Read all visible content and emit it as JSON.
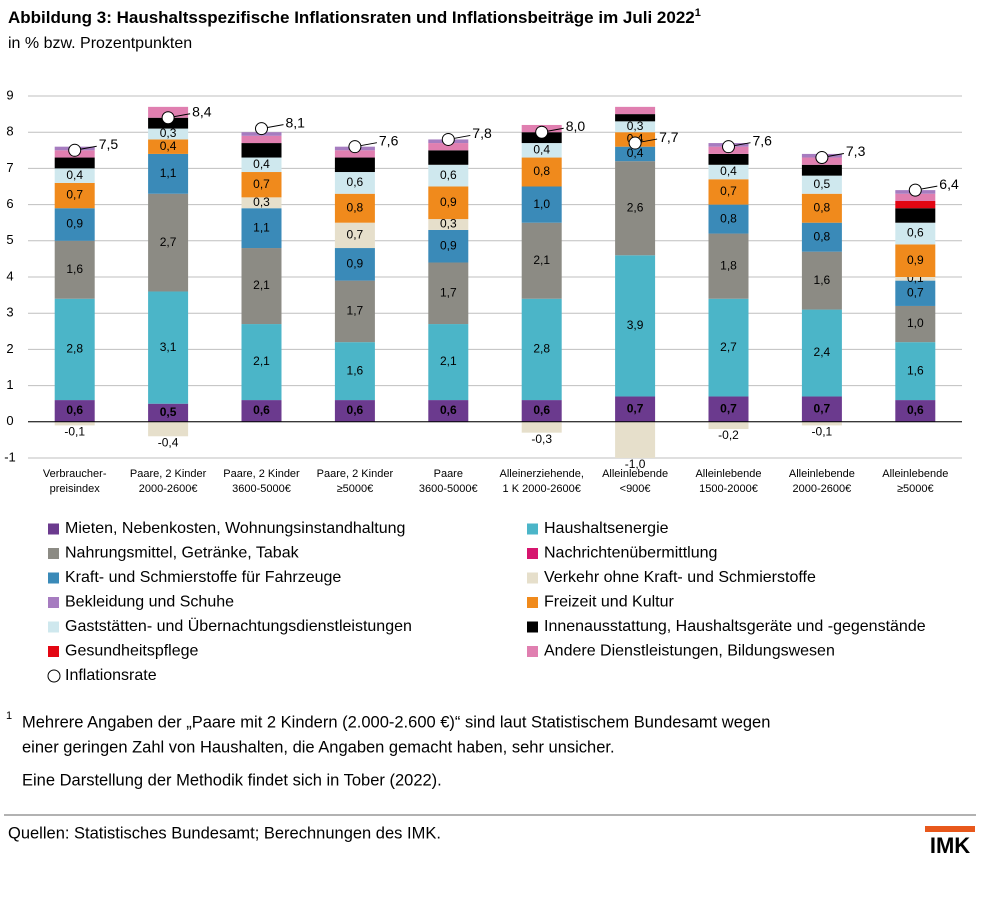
{
  "chart_data": {
    "type": "stacked_bar",
    "title": "Abbildung 3: Haushaltsspezifische Inflationsraten und Inflationsbeiträge im Juli 2022",
    "title_note": "1",
    "subtitle": "in % bzw. Prozentpunkten",
    "categories": [
      [
        "Verbraucher-",
        "preisindex"
      ],
      [
        "Paare, 2  Kinder",
        "2000-2600€"
      ],
      [
        "Paare, 2  Kinder",
        "3600-5000€"
      ],
      [
        "Paare, 2  Kinder",
        "≥5000€"
      ],
      [
        "Paare",
        "3600-5000€"
      ],
      [
        "Alleinerziehende,",
        "1 K 2000-2600€"
      ],
      [
        "Alleinlebende",
        "<900€"
      ],
      [
        "Alleinlebende",
        "1500-2000€"
      ],
      [
        "Alleinlebende",
        "2000-2600€"
      ],
      [
        "Alleinlebende",
        "≥5000€"
      ]
    ],
    "ylim": [
      -1,
      9
    ],
    "yticks": [
      -1,
      0,
      1,
      2,
      3,
      4,
      5,
      6,
      7,
      8,
      9
    ],
    "grid": true,
    "series": [
      {
        "name": "Mieten, Nebenkosten, Wohnungsinstandhaltung",
        "color": "#6b3a8e",
        "values": [
          0.6,
          0.5,
          0.6,
          0.6,
          0.6,
          0.6,
          0.7,
          0.7,
          0.7,
          0.6
        ],
        "value_labels": [
          "0,6",
          "0,5",
          "0,6",
          "0,6",
          "0,6",
          "0,6",
          "0,7",
          "0,7",
          "0,7",
          "0,6"
        ]
      },
      {
        "name": "Haushaltsenergie",
        "color": "#4bb5c8",
        "values": [
          2.8,
          3.1,
          2.1,
          1.6,
          2.1,
          2.8,
          3.9,
          2.7,
          2.4,
          1.6
        ],
        "value_labels": [
          "2,8",
          "3,1",
          "2,1",
          "1,6",
          "2,1",
          "2,8",
          "3,9",
          "2,7",
          "2,4",
          "1,6"
        ]
      },
      {
        "name": "Nahrungsmittel, Getränke, Tabak",
        "color": "#8c8b84",
        "values": [
          1.6,
          2.7,
          2.1,
          1.7,
          1.7,
          2.1,
          2.6,
          1.8,
          1.6,
          1.0
        ],
        "value_labels": [
          "1,6",
          "2,7",
          "2,1",
          "1,7",
          "1,7",
          "2,1",
          "2,6",
          "1,8",
          "1,6",
          "1,0"
        ]
      },
      {
        "name": "Nachrichtenübermittlung",
        "color": "#d6156e",
        "values": [
          0,
          0,
          0,
          0,
          0,
          0,
          0,
          0,
          0,
          0
        ]
      },
      {
        "name": "Kraft- und Schmierstoffe für Fahrzeuge",
        "color": "#3a8ab8",
        "values": [
          0.9,
          1.1,
          1.1,
          0.9,
          0.9,
          1.0,
          0.4,
          0.8,
          0.8,
          0.7
        ],
        "value_labels": [
          "0,9",
          "1,1",
          "1,1",
          "0,9",
          "0,9",
          "1,0",
          "0,4",
          "0,8",
          "0,8",
          "0,7"
        ]
      },
      {
        "name": "Verkehr ohne Kraft- und Schmierstoffe",
        "color": "#e6dfcb",
        "values": [
          -0.1,
          -0.4,
          0.3,
          0.7,
          0.3,
          -0.3,
          -1.0,
          -0.2,
          -0.1,
          0.1
        ],
        "value_labels": [
          "-0,1",
          "-0,4",
          "0,3",
          "0,7",
          "0,3",
          "-0,3",
          "-1,0",
          "-0,2",
          "-0,1",
          "0,1"
        ]
      },
      {
        "name": "Bekleidung und Schuhe",
        "color": "#a67cc0",
        "values": [
          0.1,
          0,
          0.1,
          0.1,
          0.1,
          0,
          0,
          0.1,
          0.1,
          0.1
        ]
      },
      {
        "name": "Freizeit und Kultur",
        "color": "#f08a1c",
        "values": [
          0.7,
          0.4,
          0.7,
          0.8,
          0.9,
          0.8,
          0.4,
          0.7,
          0.8,
          0.9
        ],
        "value_labels": [
          "0,7",
          "0,4",
          "0,7",
          "0,8",
          "0,9",
          "0,8",
          "0,4",
          "0,7",
          "0,8",
          "0,9"
        ]
      },
      {
        "name": "Gaststätten- und Übernachtungsdienstleistungen",
        "color": "#cfe8ee",
        "values": [
          0.4,
          0.3,
          0.4,
          0.6,
          0.6,
          0.4,
          0.3,
          0.4,
          0.5,
          0.6
        ],
        "value_labels": [
          "0,4",
          "0,3",
          "0,4",
          "0,6",
          "0,6",
          "0,4",
          "0,3",
          "0,4",
          "0,5",
          "0,6"
        ]
      },
      {
        "name": "Innenausstattung, Haushaltsgeräte und -gegenstände",
        "color": "#000000",
        "values": [
          0.3,
          0.3,
          0.4,
          0.4,
          0.4,
          0.3,
          0.2,
          0.3,
          0.3,
          0.4
        ]
      },
      {
        "name": "Gesundheitspflege",
        "color": "#e30613",
        "values": [
          0,
          0,
          0,
          0,
          0,
          0,
          0,
          0,
          0,
          0.2
        ]
      },
      {
        "name": "Andere Dienstleistungen, Bildungswesen",
        "color": "#e07fb0",
        "values": [
          0.2,
          0.3,
          0.2,
          0.2,
          0.2,
          0.2,
          0.2,
          0.2,
          0.2,
          0.2
        ]
      }
    ],
    "rate": {
      "name": "Inflationsrate",
      "values": [
        7.5,
        8.4,
        8.1,
        7.6,
        7.8,
        8.0,
        7.7,
        7.6,
        7.3,
        6.4
      ],
      "value_labels": [
        "7,5",
        "8,4",
        "8,1",
        "7,6",
        "7,8",
        "8,0",
        "7,7",
        "7,6",
        "7,3",
        "6,4"
      ]
    },
    "footnote_mark": "1",
    "footnote": [
      "Mehrere Angaben der „Paare mit 2 Kindern (2.000-2.600 €)“ sind laut Statistischem Bundesamt wegen",
      "einer geringen Zahl von Haushalten, die Angaben gemacht haben, sehr unsicher."
    ],
    "method_note": "Eine Darstellung der Methodik findet sich in Tober (2022).",
    "source": "Quellen: Statistisches Bundesamt; Berechnungen des IMK.",
    "logo": "IMK"
  }
}
